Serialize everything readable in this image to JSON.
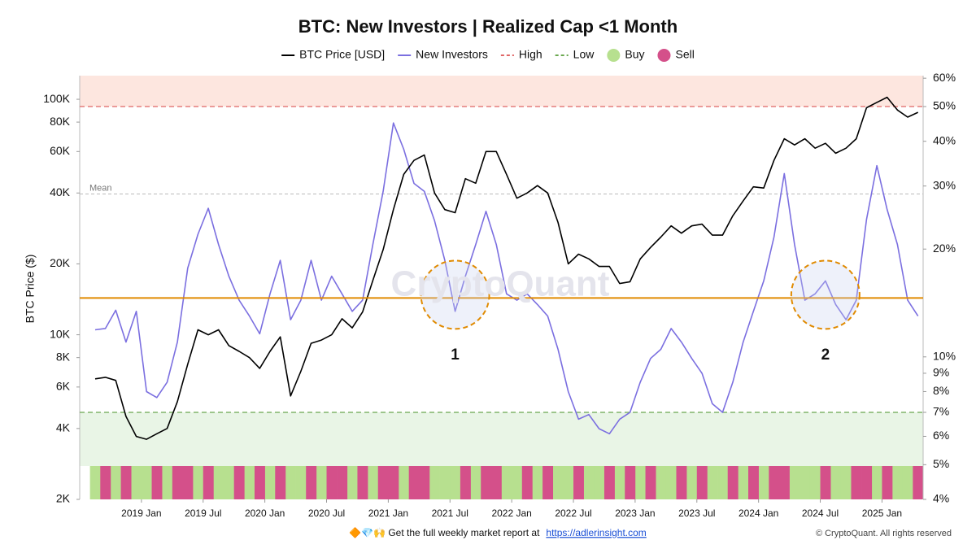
{
  "chart_data": {
    "type": "line",
    "title": "BTC: New Investors | Realized Cap <1 Month",
    "ylabel": "BTC Price ($)",
    "watermark": "CryptoQuant",
    "log_scale": true,
    "x": [
      "2018-08",
      "2018-09",
      "2018-10",
      "2018-11",
      "2018-12",
      "2019-01",
      "2019-02",
      "2019-03",
      "2019-04",
      "2019-05",
      "2019-06",
      "2019-07",
      "2019-08",
      "2019-09",
      "2019-10",
      "2019-11",
      "2019-12",
      "2020-01",
      "2020-02",
      "2020-03",
      "2020-04",
      "2020-05",
      "2020-06",
      "2020-07",
      "2020-08",
      "2020-09",
      "2020-10",
      "2020-11",
      "2020-12",
      "2021-01",
      "2021-02",
      "2021-03",
      "2021-04",
      "2021-05",
      "2021-06",
      "2021-07",
      "2021-08",
      "2021-09",
      "2021-10",
      "2021-11",
      "2021-12",
      "2022-01",
      "2022-02",
      "2022-03",
      "2022-04",
      "2022-05",
      "2022-06",
      "2022-07",
      "2022-08",
      "2022-09",
      "2022-10",
      "2022-11",
      "2022-12",
      "2023-01",
      "2023-02",
      "2023-03",
      "2023-04",
      "2023-05",
      "2023-06",
      "2023-07",
      "2023-08",
      "2023-09",
      "2023-10",
      "2023-11",
      "2023-12",
      "2024-01",
      "2024-02",
      "2024-03",
      "2024-04",
      "2024-05",
      "2024-06",
      "2024-07",
      "2024-08",
      "2024-09",
      "2024-10",
      "2024-11",
      "2024-12",
      "2025-01",
      "2025-02",
      "2025-03",
      "2025-04"
    ],
    "series": [
      {
        "name": "BTC Price [USD]",
        "color": "#000000",
        "values": [
          6500,
          6600,
          6400,
          4500,
          3700,
          3600,
          3800,
          4000,
          5200,
          7500,
          10500,
          10000,
          10500,
          9000,
          8500,
          8000,
          7200,
          8500,
          9800,
          5500,
          7000,
          9200,
          9500,
          10000,
          11700,
          10700,
          12500,
          17000,
          23000,
          34000,
          48000,
          55000,
          58000,
          40000,
          34000,
          33000,
          46000,
          44000,
          60000,
          60000,
          48000,
          38000,
          40000,
          43000,
          40000,
          30000,
          20000,
          22000,
          21000,
          19500,
          19500,
          16500,
          16800,
          21000,
          23500,
          26000,
          29000,
          27000,
          29000,
          29500,
          26500,
          26500,
          32000,
          37000,
          42500,
          42000,
          55000,
          68000,
          64000,
          68000,
          62000,
          65000,
          59000,
          62000,
          68000,
          92000,
          97000,
          102000,
          90000,
          84000,
          88000
        ]
      },
      {
        "name": "New Investors",
        "color": "#7b6fe0",
        "axis": "y2",
        "values": [
          11.9,
          12,
          13.5,
          11,
          13.4,
          8,
          7.7,
          8.5,
          11,
          17.7,
          22,
          26,
          20.6,
          16.8,
          14.4,
          13,
          11.6,
          15,
          18.6,
          12.7,
          14.4,
          18.6,
          14.4,
          16.8,
          15,
          13.4,
          14.4,
          20.6,
          29,
          45,
          38,
          30.5,
          29,
          24,
          18.6,
          13.4,
          16.8,
          20.6,
          25.5,
          20.6,
          15,
          14.4,
          15,
          14,
          13,
          10.5,
          8,
          6.7,
          6.9,
          6.3,
          6.1,
          6.7,
          7,
          8.5,
          9.9,
          10.5,
          12,
          11,
          9.9,
          9,
          7.4,
          7,
          8.5,
          11,
          13.4,
          16.3,
          21.6,
          32.5,
          20.6,
          14.4,
          15,
          16.3,
          14,
          12.7,
          14.4,
          24.2,
          34.2,
          25.8,
          20.6,
          14.4,
          13
        ]
      }
    ],
    "thresholds": [
      {
        "name": "High",
        "value": 50,
        "color": "#e06666",
        "zone": "#fde6df"
      },
      {
        "name": "Low",
        "value": 7,
        "color": "#6aa84f",
        "zone": "#e9f5e6"
      }
    ],
    "mean": {
      "label": "Mean",
      "value": 28.5
    },
    "reference_line": {
      "value": 14.6,
      "axis": "y2",
      "color": "#e08a00"
    },
    "signals": [
      {
        "name": "Buy",
        "color": "#b7e08f",
        "x": [
          "2018-08",
          "2018-10",
          "2018-12",
          "2019-01",
          "2019-03",
          "2019-06",
          "2019-08",
          "2019-09",
          "2019-11",
          "2020-01",
          "2020-03",
          "2020-04",
          "2020-06",
          "2020-09",
          "2020-11",
          "2021-02",
          "2021-05",
          "2021-06",
          "2021-07",
          "2021-09",
          "2021-12",
          "2022-01",
          "2022-03",
          "2022-05",
          "2022-06",
          "2022-08",
          "2022-09",
          "2022-11",
          "2023-01",
          "2023-03",
          "2023-04",
          "2023-06",
          "2023-08",
          "2023-09",
          "2023-11",
          "2024-01",
          "2024-04",
          "2024-05",
          "2024-06",
          "2024-08",
          "2024-09",
          "2024-12",
          "2025-02",
          "2025-03"
        ]
      },
      {
        "name": "Sell",
        "color": "#d4508a",
        "x": [
          "2018-09",
          "2018-11",
          "2019-02",
          "2019-04",
          "2019-05",
          "2019-07",
          "2019-10",
          "2019-12",
          "2020-02",
          "2020-05",
          "2020-07",
          "2020-08",
          "2020-10",
          "2020-12",
          "2021-01",
          "2021-03",
          "2021-04",
          "2021-08",
          "2021-10",
          "2021-11",
          "2022-02",
          "2022-04",
          "2022-07",
          "2022-10",
          "2022-12",
          "2023-02",
          "2023-05",
          "2023-07",
          "2023-10",
          "2023-12",
          "2024-02",
          "2024-03",
          "2024-07",
          "2024-10",
          "2024-11",
          "2025-01",
          "2025-04"
        ]
      }
    ],
    "annotations": [
      {
        "label": "1",
        "x": "2021-07"
      },
      {
        "label": "2",
        "x": "2024-07"
      }
    ],
    "xlim": [
      "2018-07",
      "2025-05"
    ],
    "xticks": [
      {
        "value": "2019-01",
        "label": "2019 Jan"
      },
      {
        "value": "2019-07",
        "label": "2019 Jul"
      },
      {
        "value": "2020-01",
        "label": "2020 Jan"
      },
      {
        "value": "2020-07",
        "label": "2020 Jul"
      },
      {
        "value": "2021-01",
        "label": "2021 Jan"
      },
      {
        "value": "2021-07",
        "label": "2021 Jul"
      },
      {
        "value": "2022-01",
        "label": "2022 Jan"
      },
      {
        "value": "2022-07",
        "label": "2022 Jul"
      },
      {
        "value": "2023-01",
        "label": "2023 Jan"
      },
      {
        "value": "2023-07",
        "label": "2023 Jul"
      },
      {
        "value": "2024-01",
        "label": "2024 Jan"
      },
      {
        "value": "2024-07",
        "label": "2024 Jul"
      },
      {
        "value": "2025-01",
        "label": "2025 Jan"
      }
    ],
    "ylim": [
      2000,
      126000
    ],
    "yticks": [
      {
        "value": 2000,
        "label": "2K"
      },
      {
        "value": 4000,
        "label": "4K"
      },
      {
        "value": 6000,
        "label": "6K"
      },
      {
        "value": 8000,
        "label": "8K"
      },
      {
        "value": 10000,
        "label": "10K"
      },
      {
        "value": 20000,
        "label": "20K"
      },
      {
        "value": 40000,
        "label": "40K"
      },
      {
        "value": 60000,
        "label": "60K"
      },
      {
        "value": 80000,
        "label": "80K"
      },
      {
        "value": 100000,
        "label": "100K"
      }
    ],
    "y2lim": [
      4,
      61
    ],
    "y2ticks": [
      {
        "value": 4,
        "label": "4%"
      },
      {
        "value": 5,
        "label": "5%"
      },
      {
        "value": 6,
        "label": "6%"
      },
      {
        "value": 7,
        "label": "7%"
      },
      {
        "value": 8,
        "label": "8%"
      },
      {
        "value": 9,
        "label": "9%"
      },
      {
        "value": 10,
        "label": "10%"
      },
      {
        "value": 20,
        "label": "20%"
      },
      {
        "value": 30,
        "label": "30%"
      },
      {
        "value": 40,
        "label": "40%"
      },
      {
        "value": 50,
        "label": "50%"
      },
      {
        "value": 60,
        "label": "60%"
      }
    ]
  },
  "footer": {
    "promo": "🔶💎🙌 Get the full weekly market report at",
    "link": "https://adlerinsight.com",
    "copyright": "© CryptoQuant. All rights reserved"
  }
}
